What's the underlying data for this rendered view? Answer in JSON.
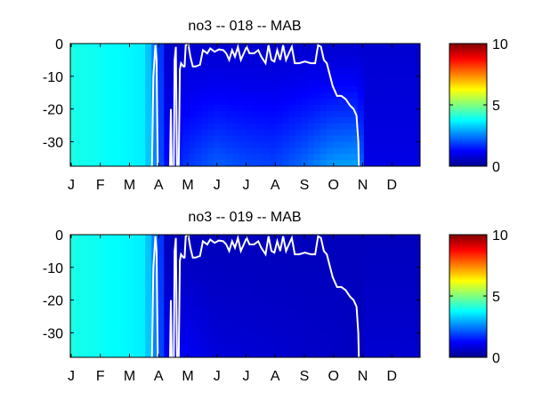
{
  "chart_data": [
    {
      "type": "heatmap",
      "title": "no3 -- 018 -- MAB",
      "xlabel": "",
      "ylabel": "",
      "x_categories": [
        "J",
        "F",
        "M",
        "A",
        "M",
        "J",
        "J",
        "A",
        "S",
        "O",
        "N",
        "D"
      ],
      "ylim": [
        -37.5,
        0
      ],
      "y_ticks": [
        "0",
        "-10",
        "-20",
        "-30"
      ],
      "colorbar": {
        "ticks": [
          "0",
          "5",
          "10"
        ],
        "range": [
          0,
          10
        ],
        "colormap": "jet"
      },
      "upper_layer_value": 0.8,
      "winter_value": 4.0,
      "deep_profile": [
        {
          "month": 3.2,
          "bottom": 1.3
        },
        {
          "month": 3.6,
          "bottom": 1.5
        },
        {
          "month": 4.0,
          "bottom": 1.8
        },
        {
          "month": 4.5,
          "bottom": 2.0
        },
        {
          "month": 5.0,
          "bottom": 2.2
        },
        {
          "month": 6.0,
          "bottom": 2.0
        },
        {
          "month": 7.0,
          "bottom": 1.9
        },
        {
          "month": 8.0,
          "bottom": 2.3
        },
        {
          "month": 9.0,
          "bottom": 2.8
        },
        {
          "month": 9.9,
          "bottom": 2.9
        },
        {
          "month": 10.1,
          "bottom": 0.9
        }
      ],
      "white_line_depth": [
        [
          2.8,
          -38
        ],
        [
          2.85,
          -10
        ],
        [
          2.92,
          -0.5
        ],
        [
          2.96,
          -5
        ],
        [
          3.0,
          -38
        ],
        [
          3.42,
          -38
        ],
        [
          3.45,
          -20
        ],
        [
          3.48,
          -38
        ],
        [
          3.55,
          -38
        ],
        [
          3.58,
          -5
        ],
        [
          3.62,
          -1
        ],
        [
          3.66,
          -38
        ],
        [
          3.72,
          -38
        ],
        [
          3.76,
          -8
        ],
        [
          3.8,
          -6
        ],
        [
          3.88,
          -7
        ],
        [
          3.92,
          -7
        ],
        [
          3.96,
          -0.5
        ],
        [
          4.05,
          -0.3
        ],
        [
          4.12,
          -4
        ],
        [
          4.2,
          -7
        ],
        [
          4.3,
          -7
        ],
        [
          4.45,
          -6.5
        ],
        [
          4.55,
          -2
        ],
        [
          4.7,
          -3
        ],
        [
          4.8,
          -1.5
        ],
        [
          4.95,
          -2.5
        ],
        [
          5.1,
          -1.8
        ],
        [
          5.25,
          -2
        ],
        [
          5.35,
          -3
        ],
        [
          5.45,
          -5
        ],
        [
          5.55,
          -2
        ],
        [
          5.65,
          -4
        ],
        [
          5.75,
          -1
        ],
        [
          5.85,
          -5
        ],
        [
          5.95,
          -3
        ],
        [
          6.05,
          -1
        ],
        [
          6.15,
          -3
        ],
        [
          6.3,
          -3
        ],
        [
          6.45,
          -2
        ],
        [
          6.55,
          -4
        ],
        [
          6.7,
          -6
        ],
        [
          6.8,
          -0.5
        ],
        [
          6.9,
          -5
        ],
        [
          7.0,
          -5.5
        ],
        [
          7.1,
          -2
        ],
        [
          7.2,
          -5
        ],
        [
          7.3,
          -0.5
        ],
        [
          7.4,
          -5
        ],
        [
          7.5,
          -3
        ],
        [
          7.6,
          -1
        ],
        [
          7.7,
          -6
        ],
        [
          7.85,
          -6
        ],
        [
          8.05,
          -5.5
        ],
        [
          8.25,
          -6
        ],
        [
          8.4,
          -6
        ],
        [
          8.5,
          -0.5
        ],
        [
          8.6,
          -1
        ],
        [
          8.7,
          -5
        ],
        [
          8.8,
          -6
        ],
        [
          9.0,
          -13
        ],
        [
          9.15,
          -16
        ],
        [
          9.3,
          -16
        ],
        [
          9.45,
          -17
        ],
        [
          9.6,
          -19
        ],
        [
          9.72,
          -20
        ],
        [
          9.82,
          -22
        ],
        [
          9.88,
          -30
        ],
        [
          9.9,
          -38
        ]
      ]
    },
    {
      "type": "heatmap",
      "title": "no3 -- 019 -- MAB",
      "xlabel": "",
      "ylabel": "",
      "x_categories": [
        "J",
        "F",
        "M",
        "A",
        "M",
        "J",
        "J",
        "A",
        "S",
        "O",
        "N",
        "D"
      ],
      "ylim": [
        -37.5,
        0
      ],
      "y_ticks": [
        "0",
        "-10",
        "-20",
        "-30"
      ],
      "colorbar": {
        "ticks": [
          "0",
          "5",
          "10"
        ],
        "range": [
          0,
          10
        ],
        "colormap": "jet"
      },
      "upper_layer_value": 0.6,
      "winter_value": 4.0,
      "deep_profile": [
        {
          "month": 3.2,
          "bottom": 1.2
        },
        {
          "month": 4.0,
          "bottom": 1.2
        },
        {
          "month": 5.0,
          "bottom": 0.9
        },
        {
          "month": 7.0,
          "bottom": 0.8
        },
        {
          "month": 9.0,
          "bottom": 0.7
        },
        {
          "month": 10.0,
          "bottom": 0.6
        }
      ],
      "white_line_depth": [
        [
          2.8,
          -38
        ],
        [
          2.85,
          -10
        ],
        [
          2.92,
          -0.5
        ],
        [
          2.96,
          -5
        ],
        [
          3.0,
          -38
        ],
        [
          3.42,
          -38
        ],
        [
          3.45,
          -20
        ],
        [
          3.48,
          -38
        ],
        [
          3.55,
          -38
        ],
        [
          3.58,
          -5
        ],
        [
          3.62,
          -1
        ],
        [
          3.66,
          -38
        ],
        [
          3.72,
          -38
        ],
        [
          3.76,
          -8
        ],
        [
          3.8,
          -6
        ],
        [
          3.88,
          -7
        ],
        [
          3.92,
          -7
        ],
        [
          3.96,
          -0.5
        ],
        [
          4.05,
          -0.3
        ],
        [
          4.12,
          -4
        ],
        [
          4.2,
          -7
        ],
        [
          4.3,
          -7
        ],
        [
          4.45,
          -6.5
        ],
        [
          4.55,
          -2
        ],
        [
          4.7,
          -3
        ],
        [
          4.8,
          -1.5
        ],
        [
          4.95,
          -2.5
        ],
        [
          5.1,
          -1.8
        ],
        [
          5.25,
          -2
        ],
        [
          5.35,
          -3
        ],
        [
          5.45,
          -5
        ],
        [
          5.55,
          -2
        ],
        [
          5.65,
          -4
        ],
        [
          5.75,
          -1
        ],
        [
          5.85,
          -5
        ],
        [
          5.95,
          -3
        ],
        [
          6.05,
          -1
        ],
        [
          6.15,
          -3
        ],
        [
          6.3,
          -3
        ],
        [
          6.45,
          -2
        ],
        [
          6.55,
          -4
        ],
        [
          6.7,
          -6
        ],
        [
          6.8,
          -0.5
        ],
        [
          6.9,
          -5
        ],
        [
          7.0,
          -5.5
        ],
        [
          7.1,
          -2
        ],
        [
          7.2,
          -5
        ],
        [
          7.3,
          -0.5
        ],
        [
          7.4,
          -5
        ],
        [
          7.5,
          -3
        ],
        [
          7.6,
          -1
        ],
        [
          7.7,
          -6
        ],
        [
          7.85,
          -6
        ],
        [
          8.05,
          -5.5
        ],
        [
          8.25,
          -6
        ],
        [
          8.4,
          -6
        ],
        [
          8.5,
          -0.5
        ],
        [
          8.6,
          -1
        ],
        [
          8.7,
          -5
        ],
        [
          8.8,
          -6
        ],
        [
          9.0,
          -13
        ],
        [
          9.15,
          -16
        ],
        [
          9.3,
          -16
        ],
        [
          9.45,
          -17
        ],
        [
          9.6,
          -19
        ],
        [
          9.72,
          -20
        ],
        [
          9.82,
          -22
        ],
        [
          9.88,
          -30
        ],
        [
          9.9,
          -38
        ]
      ]
    }
  ]
}
